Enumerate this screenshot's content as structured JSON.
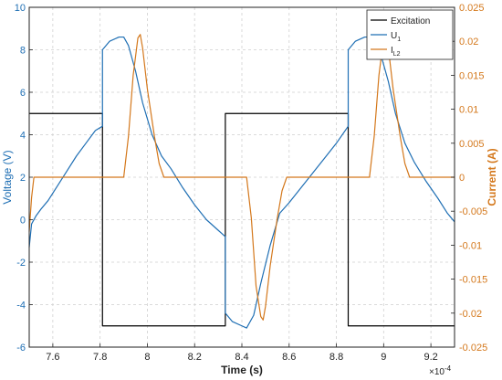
{
  "chart_data": {
    "type": "line",
    "title": "",
    "xlabel": "Time (s)",
    "ylabel_left": "Voltage (V)",
    "ylabel_right": "Current (A)",
    "x_exponent_label": "×10",
    "x_exponent_power": "-4",
    "x_scale_factor": 0.0001,
    "xlim": [
      7.5,
      9.3
    ],
    "ylim_left": [
      -6,
      10
    ],
    "ylim_right": [
      -0.025,
      0.025
    ],
    "x_ticks": [
      7.6,
      7.8,
      8,
      8.2,
      8.4,
      8.6,
      8.8,
      9,
      9.2
    ],
    "x_tick_labels": [
      "7.6",
      "7.8",
      "8",
      "8.2",
      "8.4",
      "8.6",
      "8.8",
      "9",
      "9.2"
    ],
    "y_left_ticks": [
      -6,
      -4,
      -2,
      0,
      2,
      4,
      6,
      8,
      10
    ],
    "y_left_tick_labels": [
      "-6",
      "-4",
      "-2",
      "0",
      "2",
      "4",
      "6",
      "8",
      "10"
    ],
    "y_right_ticks": [
      -0.025,
      -0.02,
      -0.015,
      -0.01,
      -0.005,
      0,
      0.005,
      0.01,
      0.015,
      0.02,
      0.025
    ],
    "y_right_tick_labels": [
      "-0.025",
      "-0.02",
      "-0.015",
      "-0.01",
      "-0.005",
      "0",
      "0.005",
      "0.01",
      "0.015",
      "0.02",
      "0.025"
    ],
    "grid": true,
    "legend_position": "top-right",
    "series": [
      {
        "name": "Excitation",
        "axis": "left",
        "color": "#000000",
        "points": [
          [
            7.5,
            5
          ],
          [
            7.81,
            5
          ],
          [
            7.81,
            -5
          ],
          [
            8.33,
            -5
          ],
          [
            8.33,
            5
          ],
          [
            8.85,
            5
          ],
          [
            8.85,
            -5
          ],
          [
            9.3,
            -5
          ]
        ]
      },
      {
        "name": "U1",
        "name_main": "U",
        "name_sub": "1",
        "axis": "left",
        "color": "#1f6fb4",
        "points": [
          [
            7.5,
            -1.3
          ],
          [
            7.51,
            -0.2
          ],
          [
            7.53,
            0.2
          ],
          [
            7.55,
            0.5
          ],
          [
            7.58,
            0.9
          ],
          [
            7.62,
            1.6
          ],
          [
            7.66,
            2.3
          ],
          [
            7.7,
            3.0
          ],
          [
            7.74,
            3.6
          ],
          [
            7.78,
            4.2
          ],
          [
            7.81,
            4.4
          ],
          [
            7.81,
            8.0
          ],
          [
            7.84,
            8.4
          ],
          [
            7.88,
            8.6
          ],
          [
            7.9,
            8.6
          ],
          [
            7.92,
            8.2
          ],
          [
            7.95,
            7.0
          ],
          [
            7.98,
            5.5
          ],
          [
            8.02,
            4.0
          ],
          [
            8.06,
            3.0
          ],
          [
            8.1,
            2.4
          ],
          [
            8.15,
            1.5
          ],
          [
            8.2,
            0.7
          ],
          [
            8.25,
            0.0
          ],
          [
            8.3,
            -0.5
          ],
          [
            8.33,
            -0.8
          ],
          [
            8.33,
            -4.4
          ],
          [
            8.36,
            -4.8
          ],
          [
            8.4,
            -5.0
          ],
          [
            8.42,
            -5.1
          ],
          [
            8.45,
            -4.5
          ],
          [
            8.48,
            -3.0
          ],
          [
            8.52,
            -1.2
          ],
          [
            8.56,
            0.3
          ],
          [
            8.6,
            0.8
          ],
          [
            8.65,
            1.5
          ],
          [
            8.7,
            2.2
          ],
          [
            8.75,
            2.9
          ],
          [
            8.8,
            3.6
          ],
          [
            8.85,
            4.4
          ],
          [
            8.85,
            8.0
          ],
          [
            8.88,
            8.4
          ],
          [
            8.92,
            8.6
          ],
          [
            8.95,
            8.6
          ],
          [
            8.98,
            8.1
          ],
          [
            9.02,
            6.5
          ],
          [
            9.05,
            5.0
          ],
          [
            9.09,
            3.6
          ],
          [
            9.13,
            2.7
          ],
          [
            9.18,
            1.8
          ],
          [
            9.23,
            1.0
          ],
          [
            9.27,
            0.3
          ],
          [
            9.3,
            -0.1
          ]
        ]
      },
      {
        "name": "IL2",
        "name_main": "I",
        "name_sub": "L2",
        "axis": "right",
        "color": "#d4781c",
        "points": [
          [
            7.5,
            -0.008
          ],
          [
            7.51,
            -0.003
          ],
          [
            7.52,
            0.0
          ],
          [
            7.9,
            0.0
          ],
          [
            7.92,
            0.006
          ],
          [
            7.94,
            0.015
          ],
          [
            7.96,
            0.0205
          ],
          [
            7.97,
            0.021
          ],
          [
            7.98,
            0.019
          ],
          [
            8.0,
            0.013
          ],
          [
            8.03,
            0.006
          ],
          [
            8.05,
            0.002
          ],
          [
            8.07,
            0.0
          ],
          [
            8.42,
            0.0
          ],
          [
            8.44,
            -0.006
          ],
          [
            8.46,
            -0.016
          ],
          [
            8.48,
            -0.0205
          ],
          [
            8.49,
            -0.021
          ],
          [
            8.5,
            -0.019
          ],
          [
            8.52,
            -0.013
          ],
          [
            8.55,
            -0.006
          ],
          [
            8.57,
            -0.002
          ],
          [
            8.59,
            0.0
          ],
          [
            8.94,
            0.0
          ],
          [
            8.96,
            0.006
          ],
          [
            8.98,
            0.015
          ],
          [
            9.0,
            0.0205
          ],
          [
            9.01,
            0.021
          ],
          [
            9.02,
            0.019
          ],
          [
            9.04,
            0.013
          ],
          [
            9.07,
            0.006
          ],
          [
            9.09,
            0.002
          ],
          [
            9.11,
            0.0
          ],
          [
            9.3,
            0.0
          ]
        ]
      }
    ]
  }
}
